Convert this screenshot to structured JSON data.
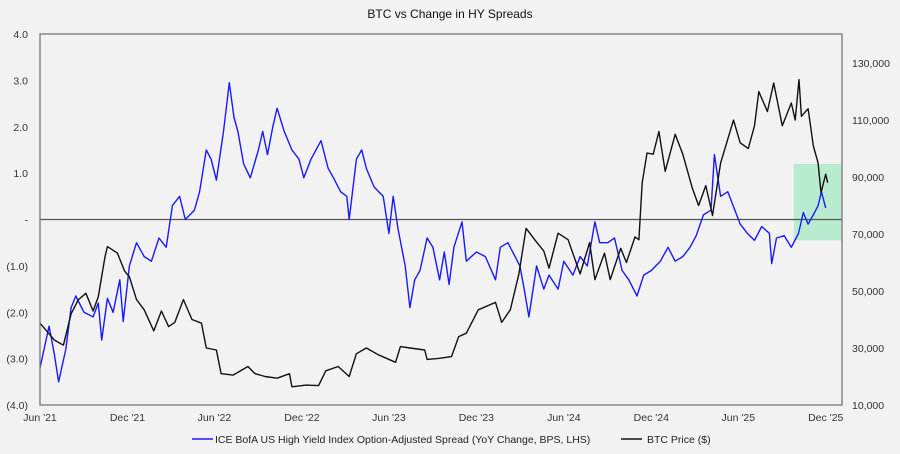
{
  "chart_data": {
    "type": "line",
    "title": "BTC vs Change in HY Spreads",
    "x_range": [
      "2021-06-01",
      "2026-01-04"
    ],
    "x_ticks": [
      {
        "date": "2021-06-01",
        "label": "Jun '21"
      },
      {
        "date": "2021-12-01",
        "label": "Dec '21"
      },
      {
        "date": "2022-06-01",
        "label": "Jun '22"
      },
      {
        "date": "2022-12-01",
        "label": "Dec '22"
      },
      {
        "date": "2023-06-01",
        "label": "Jun '23"
      },
      {
        "date": "2023-12-01",
        "label": "Dec '23"
      },
      {
        "date": "2024-06-01",
        "label": "Jun '24"
      },
      {
        "date": "2024-12-01",
        "label": "Dec '24"
      },
      {
        "date": "2025-06-01",
        "label": "Jun '25"
      },
      {
        "date": "2025-12-01",
        "label": "Dec '25"
      }
    ],
    "y_left": {
      "range": [
        -4,
        4
      ],
      "ticks": [
        {
          "value": 4,
          "label": "4.0"
        },
        {
          "value": 3,
          "label": "3.0"
        },
        {
          "value": 2,
          "label": "2.0"
        },
        {
          "value": 1,
          "label": "1.0"
        },
        {
          "value": 0,
          "label": "-"
        },
        {
          "value": -1,
          "label": "(1.0)"
        },
        {
          "value": -2,
          "label": "(2.0)"
        },
        {
          "value": -3,
          "label": "(3.0)"
        },
        {
          "value": -4,
          "label": "(4.0)"
        }
      ]
    },
    "y_right": {
      "range": [
        10000,
        140200
      ],
      "ticks": [
        {
          "value": 10000,
          "label": "10,000"
        },
        {
          "value": 30000,
          "label": "30,000"
        },
        {
          "value": 50000,
          "label": "50,000"
        },
        {
          "value": 70000,
          "label": "70,000"
        },
        {
          "value": 90000,
          "label": "90,000"
        },
        {
          "value": 110000,
          "label": "110,000"
        },
        {
          "value": 130000,
          "label": "130,000"
        }
      ]
    },
    "zero_line": true,
    "grid": false,
    "legend_position": "bottom",
    "highlight": {
      "x": [
        "2025-09-25",
        "2026-01-04"
      ],
      "y_left": [
        -0.45,
        1.2
      ],
      "color": "#b9ebcf"
    },
    "series": [
      {
        "name": "ICE BofA US High Yield Index Option-Adjusted Spread (YoY Change, BPS, LHS)",
        "axis": "left",
        "color": "#1a1aff",
        "points": [
          [
            "2021-06-01",
            -3.2
          ],
          [
            "2021-06-20",
            -2.3
          ],
          [
            "2021-07-01",
            -2.9
          ],
          [
            "2021-07-10",
            -3.5
          ],
          [
            "2021-07-25",
            -2.8
          ],
          [
            "2021-08-05",
            -1.9
          ],
          [
            "2021-08-15",
            -1.65
          ],
          [
            "2021-09-01",
            -2.0
          ],
          [
            "2021-09-20",
            -2.1
          ],
          [
            "2021-10-01",
            -1.8
          ],
          [
            "2021-10-08",
            -2.6
          ],
          [
            "2021-10-20",
            -1.7
          ],
          [
            "2021-11-01",
            -2.0
          ],
          [
            "2021-11-15",
            -1.3
          ],
          [
            "2021-11-22",
            -2.2
          ],
          [
            "2021-12-05",
            -1.0
          ],
          [
            "2021-12-20",
            -0.5
          ],
          [
            "2022-01-05",
            -0.8
          ],
          [
            "2022-01-20",
            -0.9
          ],
          [
            "2022-02-05",
            -0.4
          ],
          [
            "2022-02-20",
            -0.6
          ],
          [
            "2022-03-05",
            0.3
          ],
          [
            "2022-03-20",
            0.5
          ],
          [
            "2022-04-01",
            0.0
          ],
          [
            "2022-04-20",
            0.2
          ],
          [
            "2022-05-01",
            0.6
          ],
          [
            "2022-05-15",
            1.5
          ],
          [
            "2022-05-25",
            1.3
          ],
          [
            "2022-06-05",
            0.85
          ],
          [
            "2022-06-20",
            1.9
          ],
          [
            "2022-07-02",
            2.95
          ],
          [
            "2022-07-12",
            2.2
          ],
          [
            "2022-07-20",
            1.9
          ],
          [
            "2022-08-01",
            1.2
          ],
          [
            "2022-08-15",
            0.9
          ],
          [
            "2022-09-01",
            1.5
          ],
          [
            "2022-09-10",
            1.9
          ],
          [
            "2022-09-20",
            1.4
          ],
          [
            "2022-10-01",
            2.0
          ],
          [
            "2022-10-10",
            2.4
          ],
          [
            "2022-10-25",
            1.9
          ],
          [
            "2022-11-10",
            1.5
          ],
          [
            "2022-11-25",
            1.3
          ],
          [
            "2022-12-05",
            0.9
          ],
          [
            "2022-12-20",
            1.3
          ],
          [
            "2023-01-10",
            1.7
          ],
          [
            "2023-01-25",
            1.1
          ],
          [
            "2023-02-05",
            0.9
          ],
          [
            "2023-02-20",
            0.6
          ],
          [
            "2023-03-05",
            0.5
          ],
          [
            "2023-03-10",
            0.0
          ],
          [
            "2023-03-25",
            1.3
          ],
          [
            "2023-04-05",
            1.5
          ],
          [
            "2023-04-15",
            1.1
          ],
          [
            "2023-05-01",
            0.7
          ],
          [
            "2023-05-20",
            0.5
          ],
          [
            "2023-06-01",
            -0.3
          ],
          [
            "2023-06-10",
            0.5
          ],
          [
            "2023-06-20",
            -0.2
          ],
          [
            "2023-07-05",
            -1.0
          ],
          [
            "2023-07-15",
            -1.9
          ],
          [
            "2023-07-25",
            -1.3
          ],
          [
            "2023-08-05",
            -1.1
          ],
          [
            "2023-08-20",
            -0.4
          ],
          [
            "2023-09-01",
            -0.6
          ],
          [
            "2023-09-15",
            -1.3
          ],
          [
            "2023-09-25",
            -0.7
          ],
          [
            "2023-10-05",
            -1.4
          ],
          [
            "2023-10-15",
            -0.6
          ],
          [
            "2023-11-01",
            -0.05
          ],
          [
            "2023-11-10",
            -0.9
          ],
          [
            "2023-12-01",
            -0.7
          ],
          [
            "2023-12-20",
            -0.8
          ],
          [
            "2024-01-10",
            -1.3
          ],
          [
            "2024-01-20",
            -0.6
          ],
          [
            "2024-02-05",
            -0.5
          ],
          [
            "2024-02-20",
            -0.8
          ],
          [
            "2024-03-01",
            -1.0
          ],
          [
            "2024-03-10",
            -1.5
          ],
          [
            "2024-03-20",
            -2.1
          ],
          [
            "2024-04-05",
            -1.0
          ],
          [
            "2024-04-20",
            -1.5
          ],
          [
            "2024-05-01",
            -1.2
          ],
          [
            "2024-05-20",
            -1.5
          ],
          [
            "2024-06-01",
            -0.9
          ],
          [
            "2024-06-20",
            -1.2
          ],
          [
            "2024-07-05",
            -0.8
          ],
          [
            "2024-07-20",
            -1.0
          ],
          [
            "2024-08-05",
            -0.05
          ],
          [
            "2024-08-15",
            -0.5
          ],
          [
            "2024-09-01",
            -0.5
          ],
          [
            "2024-09-15",
            -0.4
          ],
          [
            "2024-10-01",
            -1.1
          ],
          [
            "2024-10-15",
            -1.3
          ],
          [
            "2024-11-01",
            -1.65
          ],
          [
            "2024-11-15",
            -1.2
          ],
          [
            "2024-12-01",
            -1.1
          ],
          [
            "2024-12-20",
            -0.9
          ],
          [
            "2025-01-05",
            -0.6
          ],
          [
            "2025-01-20",
            -0.9
          ],
          [
            "2025-02-05",
            -0.8
          ],
          [
            "2025-02-20",
            -0.6
          ],
          [
            "2025-03-05",
            -0.35
          ],
          [
            "2025-03-20",
            0.1
          ],
          [
            "2025-04-05",
            0.2
          ],
          [
            "2025-04-12",
            1.4
          ],
          [
            "2025-04-25",
            0.5
          ],
          [
            "2025-05-10",
            0.6
          ],
          [
            "2025-05-25",
            0.2
          ],
          [
            "2025-06-05",
            -0.1
          ],
          [
            "2025-06-20",
            -0.3
          ],
          [
            "2025-07-05",
            -0.45
          ],
          [
            "2025-07-20",
            -0.15
          ],
          [
            "2025-08-05",
            -0.3
          ],
          [
            "2025-08-10",
            -0.95
          ],
          [
            "2025-08-20",
            -0.4
          ],
          [
            "2025-09-05",
            -0.35
          ],
          [
            "2025-09-20",
            -0.6
          ],
          [
            "2025-10-05",
            -0.3
          ],
          [
            "2025-10-15",
            0.15
          ],
          [
            "2025-10-25",
            -0.1
          ],
          [
            "2025-11-05",
            0.1
          ],
          [
            "2025-11-15",
            0.3
          ],
          [
            "2025-11-22",
            0.6
          ],
          [
            "2025-12-01",
            0.25
          ]
        ]
      },
      {
        "name": "BTC Price ($)",
        "axis": "right",
        "color": "#111111",
        "points": [
          [
            "2021-06-01",
            38700
          ],
          [
            "2021-06-20",
            35000
          ],
          [
            "2021-07-01",
            32800
          ],
          [
            "2021-07-20",
            31000
          ],
          [
            "2021-08-05",
            42000
          ],
          [
            "2021-08-20",
            46900
          ],
          [
            "2021-09-05",
            49200
          ],
          [
            "2021-09-20",
            43000
          ],
          [
            "2021-10-01",
            48000
          ],
          [
            "2021-10-15",
            62000
          ],
          [
            "2021-10-20",
            65600
          ],
          [
            "2021-11-10",
            63300
          ],
          [
            "2021-11-25",
            57000
          ],
          [
            "2021-12-05",
            55000
          ],
          [
            "2021-12-20",
            47000
          ],
          [
            "2022-01-05",
            43400
          ],
          [
            "2022-01-25",
            36000
          ],
          [
            "2022-02-10",
            43000
          ],
          [
            "2022-02-25",
            37500
          ],
          [
            "2022-03-10",
            39000
          ],
          [
            "2022-03-28",
            47000
          ],
          [
            "2022-04-15",
            40000
          ],
          [
            "2022-05-05",
            38700
          ],
          [
            "2022-05-15",
            30000
          ],
          [
            "2022-06-05",
            29300
          ],
          [
            "2022-06-15",
            21000
          ],
          [
            "2022-07-10",
            20500
          ],
          [
            "2022-08-10",
            23500
          ],
          [
            "2022-08-25",
            21000
          ],
          [
            "2022-09-15",
            20000
          ],
          [
            "2022-10-10",
            19400
          ],
          [
            "2022-11-05",
            21000
          ],
          [
            "2022-11-10",
            16400
          ],
          [
            "2022-12-10",
            17000
          ],
          [
            "2023-01-05",
            16800
          ],
          [
            "2023-01-20",
            22000
          ],
          [
            "2023-02-15",
            23500
          ],
          [
            "2023-03-10",
            20000
          ],
          [
            "2023-03-25",
            28000
          ],
          [
            "2023-04-15",
            30000
          ],
          [
            "2023-05-10",
            27600
          ],
          [
            "2023-06-15",
            25000
          ],
          [
            "2023-06-25",
            30500
          ],
          [
            "2023-07-15",
            30000
          ],
          [
            "2023-08-15",
            29300
          ],
          [
            "2023-08-20",
            26000
          ],
          [
            "2023-09-15",
            26400
          ],
          [
            "2023-10-10",
            27000
          ],
          [
            "2023-10-25",
            34000
          ],
          [
            "2023-11-10",
            35200
          ],
          [
            "2023-12-05",
            43400
          ],
          [
            "2024-01-10",
            46000
          ],
          [
            "2024-01-23",
            39000
          ],
          [
            "2024-02-10",
            43400
          ],
          [
            "2024-02-28",
            56000
          ],
          [
            "2024-03-14",
            72000
          ],
          [
            "2024-04-01",
            68000
          ],
          [
            "2024-04-20",
            64000
          ],
          [
            "2024-05-01",
            58000
          ],
          [
            "2024-05-20",
            70300
          ],
          [
            "2024-06-10",
            68000
          ],
          [
            "2024-07-05",
            56000
          ],
          [
            "2024-07-25",
            67000
          ],
          [
            "2024-08-05",
            54000
          ],
          [
            "2024-08-25",
            63300
          ],
          [
            "2024-09-06",
            54000
          ],
          [
            "2024-09-28",
            65000
          ],
          [
            "2024-10-10",
            60000
          ],
          [
            "2024-10-28",
            69000
          ],
          [
            "2024-11-05",
            68000
          ],
          [
            "2024-11-12",
            88000
          ],
          [
            "2024-11-22",
            98400
          ],
          [
            "2024-12-05",
            98000
          ],
          [
            "2024-12-17",
            106000
          ],
          [
            "2024-12-30",
            92000
          ],
          [
            "2025-01-20",
            105000
          ],
          [
            "2025-02-05",
            98000
          ],
          [
            "2025-02-25",
            86000
          ],
          [
            "2025-03-10",
            80000
          ],
          [
            "2025-03-25",
            87000
          ],
          [
            "2025-04-08",
            76500
          ],
          [
            "2025-04-25",
            94900
          ],
          [
            "2025-05-22",
            110000
          ],
          [
            "2025-06-05",
            102000
          ],
          [
            "2025-06-22",
            100000
          ],
          [
            "2025-07-05",
            108000
          ],
          [
            "2025-07-14",
            120000
          ],
          [
            "2025-08-01",
            113000
          ],
          [
            "2025-08-14",
            123000
          ],
          [
            "2025-09-01",
            108000
          ],
          [
            "2025-09-20",
            116000
          ],
          [
            "2025-09-28",
            110000
          ],
          [
            "2025-10-06",
            124200
          ],
          [
            "2025-10-11",
            111300
          ],
          [
            "2025-10-25",
            114000
          ],
          [
            "2025-11-05",
            101000
          ],
          [
            "2025-11-15",
            94900
          ],
          [
            "2025-11-21",
            84500
          ],
          [
            "2025-12-01",
            91000
          ],
          [
            "2025-12-05",
            88000
          ]
        ]
      }
    ]
  }
}
